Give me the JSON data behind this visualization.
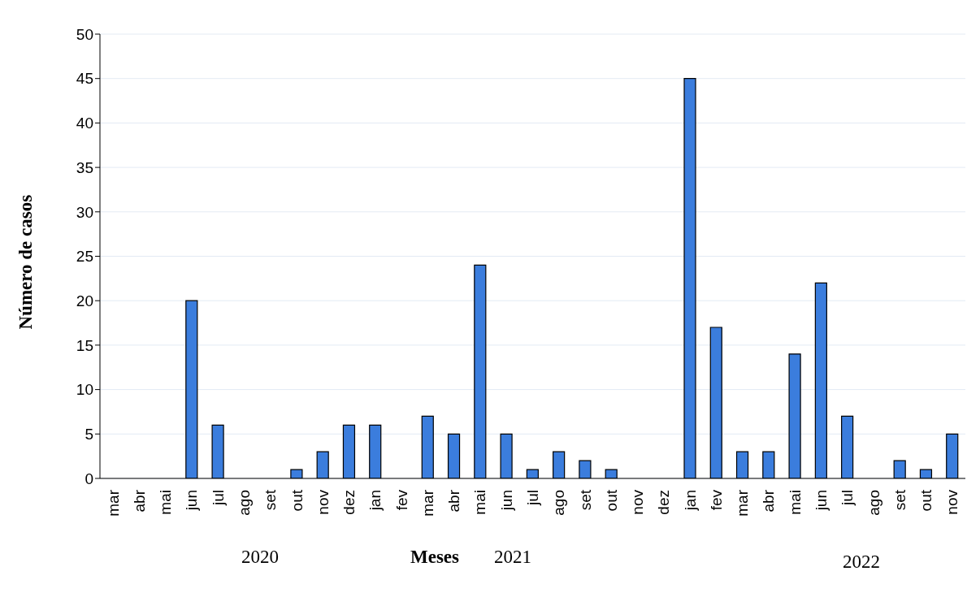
{
  "chart_data": {
    "type": "bar",
    "xlabel": "Meses",
    "ylabel": "Número de casos",
    "categories": [
      "mar",
      "abr",
      "mai",
      "jun",
      "jul",
      "ago",
      "set",
      "out",
      "nov",
      "dez",
      "jan",
      "fev",
      "mar",
      "abr",
      "mai",
      "jun",
      "jul",
      "ago",
      "set",
      "out",
      "nov",
      "dez",
      "jan",
      "fev",
      "mar",
      "abr",
      "mai",
      "jun",
      "jul",
      "ago",
      "set",
      "out",
      "nov"
    ],
    "values": [
      0,
      0,
      0,
      20,
      6,
      0,
      0,
      1,
      3,
      6,
      6,
      0,
      7,
      5,
      24,
      5,
      1,
      3,
      2,
      1,
      0,
      0,
      45,
      17,
      3,
      3,
      14,
      22,
      7,
      0,
      2,
      1,
      5
    ],
    "color": "#3b7ddd",
    "ylim": [
      0,
      50
    ],
    "yticks": [
      0,
      5,
      10,
      15,
      20,
      25,
      30,
      35,
      40,
      45,
      50
    ],
    "grid": "y",
    "legend": false,
    "annotations": [
      "2020",
      "2021",
      "2022"
    ]
  }
}
